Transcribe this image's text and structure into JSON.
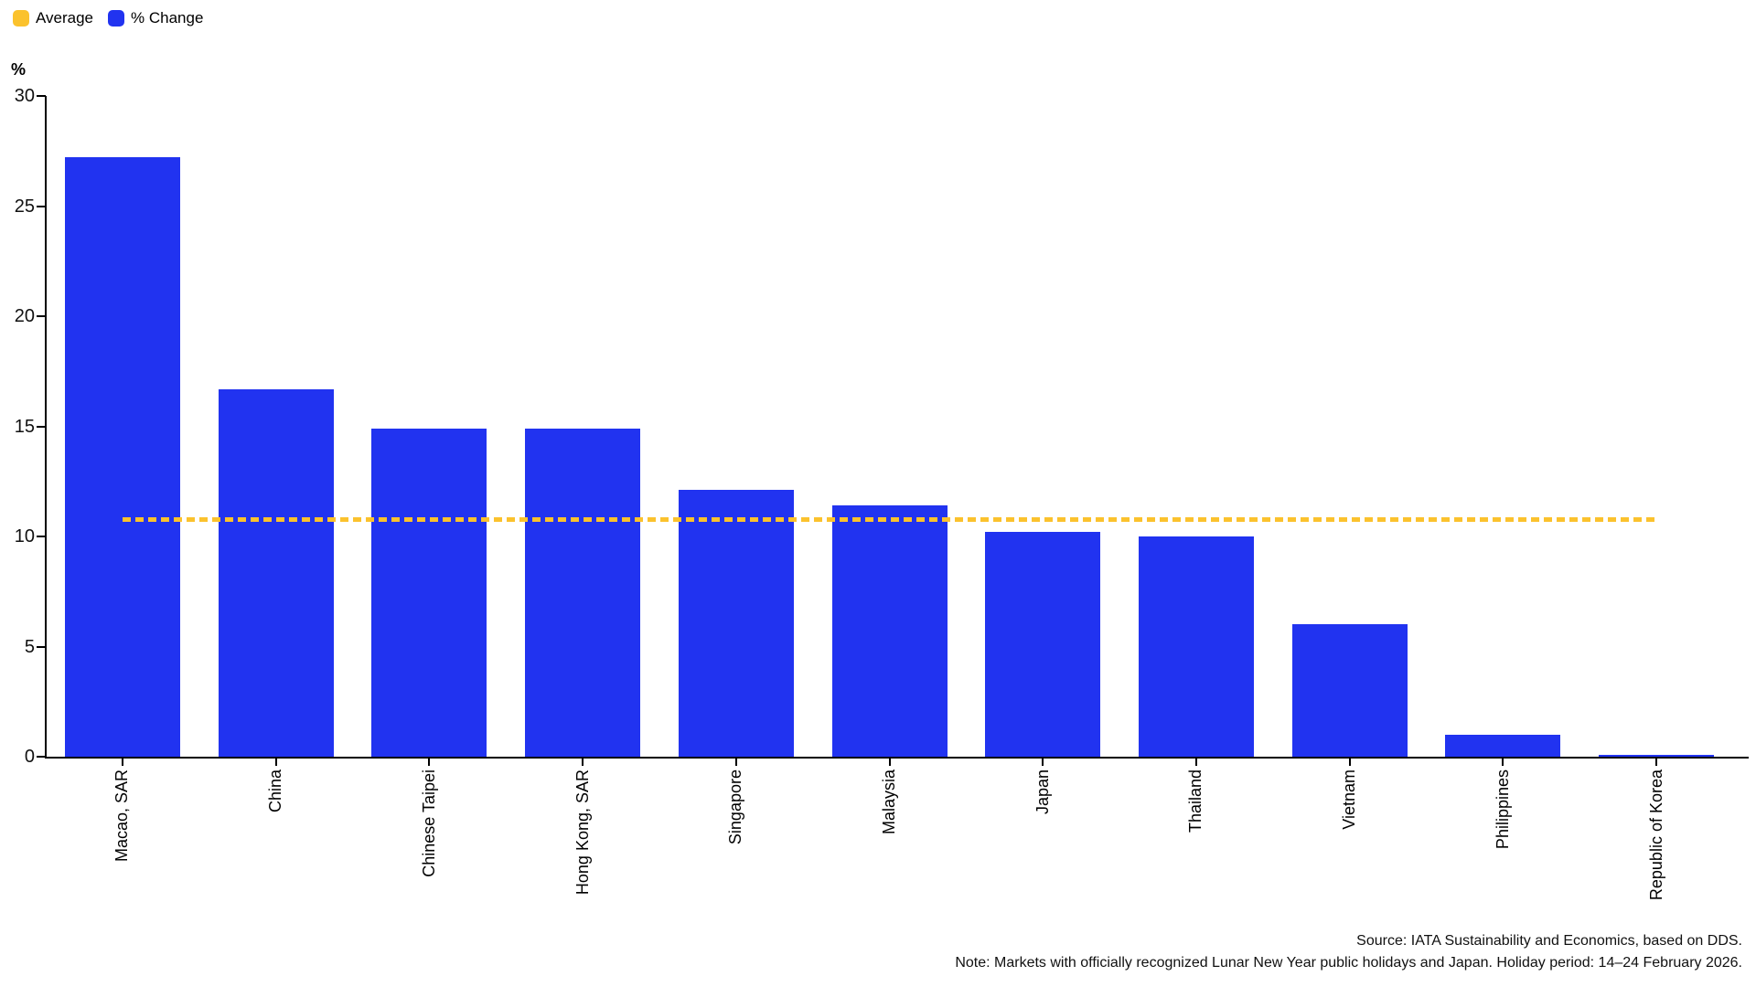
{
  "legend": {
    "items": [
      {
        "label": "Average",
        "color": "#fbc22d"
      },
      {
        "label": "% Change",
        "color": "#2133f0"
      }
    ]
  },
  "colors": {
    "bar": "#2133f0",
    "average_line": "#fbc22d",
    "axis": "#000000"
  },
  "chart_data": {
    "type": "bar",
    "title": "",
    "xlabel": "",
    "ylabel": "%",
    "categories": [
      "Macao, SAR",
      "China",
      "Chinese Taipei",
      "Hong Kong, SAR",
      "Singapore",
      "Malaysia",
      "Japan",
      "Thailand",
      "Vietnam",
      "Philippines",
      "Republic of Korea"
    ],
    "values": [
      27.2,
      16.7,
      14.9,
      14.9,
      12.1,
      11.4,
      10.2,
      10.0,
      6.0,
      1.0,
      0.1
    ],
    "series_name": "% Change",
    "average_line": {
      "label": "Average",
      "value": 10.75
    },
    "ylim": [
      0,
      30
    ],
    "yticks": [
      0,
      5,
      10,
      15,
      20,
      25,
      30
    ],
    "grid": false,
    "legend_position": "top-left",
    "x_label_rotation": -90
  },
  "footer": {
    "source": "Source: IATA Sustainability and Economics, based on DDS.",
    "note": "Note: Markets with officially recognized Lunar New Year public holidays and Japan. Holiday period: 14–24 February 2026."
  }
}
